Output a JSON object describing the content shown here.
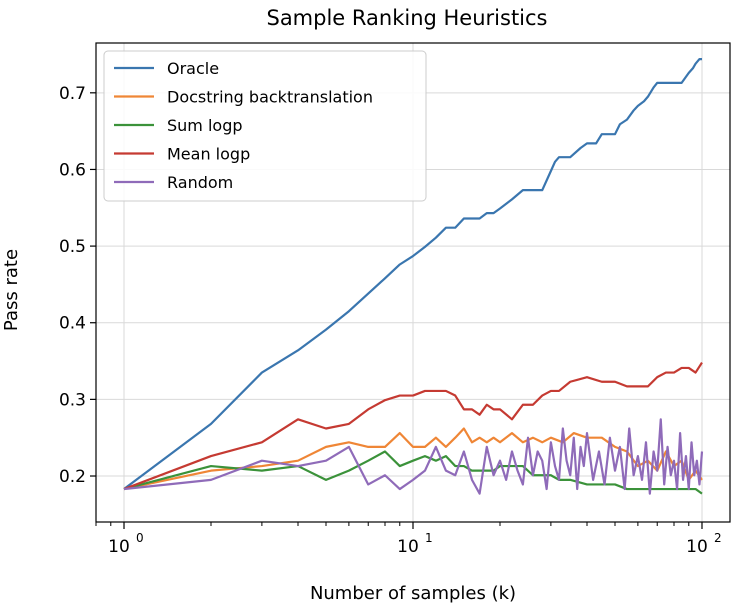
{
  "chart_data": {
    "type": "line",
    "title": "Sample Ranking Heuristics",
    "xlabel": "Number of samples (k)",
    "ylabel": "Pass rate",
    "xscale": "log",
    "xlim": [
      0.8,
      125
    ],
    "ylim": [
      0.14,
      0.765
    ],
    "xticks": [
      1,
      10,
      100
    ],
    "xtick_labels": [
      "10",
      "10",
      "10"
    ],
    "xtick_exponents": [
      "0",
      "1",
      "2"
    ],
    "yticks": [
      0.2,
      0.3,
      0.4,
      0.5,
      0.6,
      0.7
    ],
    "ytick_labels": [
      "0.2",
      "0.3",
      "0.4",
      "0.5",
      "0.6",
      "0.7"
    ],
    "grid": true,
    "legend_position": "top-left",
    "series": [
      {
        "name": "Oracle",
        "color": "#3a76af",
        "x": [
          1,
          2,
          3,
          4,
          5,
          6,
          7,
          8,
          9,
          10,
          11,
          12,
          13,
          14,
          15,
          16,
          17,
          18,
          19,
          20,
          22,
          24,
          26,
          28,
          30,
          31,
          32,
          35,
          38,
          40,
          43,
          45,
          48,
          50,
          52,
          55,
          58,
          60,
          63,
          65,
          68,
          70,
          72,
          75,
          80,
          85,
          90,
          93,
          95,
          98,
          100
        ],
        "values": [
          0.183,
          0.268,
          0.335,
          0.364,
          0.391,
          0.415,
          0.438,
          0.458,
          0.476,
          0.487,
          0.499,
          0.511,
          0.524,
          0.524,
          0.536,
          0.536,
          0.536,
          0.543,
          0.543,
          0.549,
          0.561,
          0.573,
          0.573,
          0.573,
          0.598,
          0.61,
          0.616,
          0.616,
          0.628,
          0.634,
          0.634,
          0.646,
          0.646,
          0.646,
          0.659,
          0.665,
          0.677,
          0.683,
          0.689,
          0.695,
          0.707,
          0.713,
          0.713,
          0.713,
          0.713,
          0.713,
          0.726,
          0.732,
          0.738,
          0.744,
          0.744
        ]
      },
      {
        "name": "Docstring backtranslation",
        "color": "#ef8636",
        "x": [
          1,
          2,
          3,
          4,
          5,
          6,
          7,
          8,
          9,
          10,
          11,
          12,
          13,
          14,
          15,
          16,
          17,
          18,
          19,
          20,
          22,
          24,
          26,
          28,
          30,
          33,
          36,
          40,
          45,
          50,
          55,
          60,
          65,
          70,
          75,
          80,
          85,
          90,
          95,
          100
        ],
        "values": [
          0.183,
          0.207,
          0.213,
          0.22,
          0.238,
          0.244,
          0.238,
          0.238,
          0.256,
          0.238,
          0.238,
          0.25,
          0.238,
          0.25,
          0.262,
          0.244,
          0.25,
          0.244,
          0.25,
          0.244,
          0.256,
          0.244,
          0.25,
          0.244,
          0.25,
          0.244,
          0.256,
          0.25,
          0.25,
          0.238,
          0.232,
          0.213,
          0.22,
          0.207,
          0.232,
          0.213,
          0.22,
          0.195,
          0.207,
          0.195
        ]
      },
      {
        "name": "Sum logp",
        "color": "#3b923a",
        "x": [
          1,
          2,
          3,
          4,
          5,
          6,
          7,
          8,
          9,
          10,
          11,
          12,
          13,
          14,
          15,
          16,
          17,
          18,
          19,
          20,
          22,
          24,
          26,
          28,
          30,
          32,
          35,
          40,
          45,
          50,
          55,
          60,
          65,
          70,
          75,
          80,
          85,
          90,
          95,
          100
        ],
        "values": [
          0.183,
          0.213,
          0.207,
          0.213,
          0.195,
          0.207,
          0.22,
          0.232,
          0.213,
          0.22,
          0.226,
          0.22,
          0.226,
          0.213,
          0.213,
          0.207,
          0.207,
          0.207,
          0.207,
          0.213,
          0.213,
          0.213,
          0.201,
          0.201,
          0.201,
          0.195,
          0.195,
          0.189,
          0.189,
          0.189,
          0.183,
          0.183,
          0.183,
          0.183,
          0.183,
          0.183,
          0.183,
          0.183,
          0.183,
          0.177
        ]
      },
      {
        "name": "Mean logp",
        "color": "#c53a32",
        "x": [
          1,
          2,
          3,
          4,
          5,
          6,
          7,
          8,
          9,
          10,
          11,
          12,
          13,
          14,
          15,
          16,
          17,
          18,
          19,
          20,
          22,
          24,
          26,
          28,
          30,
          32,
          35,
          40,
          45,
          50,
          55,
          60,
          65,
          70,
          75,
          80,
          85,
          90,
          95,
          100
        ],
        "values": [
          0.183,
          0.226,
          0.244,
          0.274,
          0.262,
          0.268,
          0.287,
          0.299,
          0.305,
          0.305,
          0.311,
          0.311,
          0.311,
          0.305,
          0.287,
          0.287,
          0.28,
          0.293,
          0.287,
          0.287,
          0.274,
          0.293,
          0.293,
          0.305,
          0.311,
          0.311,
          0.323,
          0.329,
          0.323,
          0.323,
          0.317,
          0.317,
          0.317,
          0.329,
          0.335,
          0.335,
          0.341,
          0.341,
          0.335,
          0.348
        ]
      },
      {
        "name": "Random",
        "color": "#8f6bb9",
        "x": [
          1,
          2,
          3,
          4,
          5,
          6,
          7,
          8,
          9,
          10,
          11,
          12,
          13,
          14,
          15,
          16,
          17,
          18,
          19,
          20,
          21,
          22,
          23,
          24,
          25,
          26,
          27,
          28,
          29,
          30,
          31,
          32,
          33,
          34,
          35,
          36,
          37,
          38,
          39,
          40,
          42,
          44,
          46,
          48,
          50,
          52,
          54,
          56,
          58,
          60,
          62,
          64,
          66,
          68,
          70,
          72,
          74,
          76,
          78,
          80,
          82,
          84,
          86,
          88,
          90,
          92,
          94,
          96,
          98,
          100
        ],
        "values": [
          0.183,
          0.195,
          0.22,
          0.213,
          0.22,
          0.238,
          0.189,
          0.201,
          0.183,
          0.195,
          0.207,
          0.238,
          0.207,
          0.201,
          0.232,
          0.195,
          0.177,
          0.238,
          0.201,
          0.22,
          0.195,
          0.232,
          0.207,
          0.189,
          0.25,
          0.201,
          0.232,
          0.22,
          0.183,
          0.244,
          0.213,
          0.195,
          0.262,
          0.22,
          0.201,
          0.25,
          0.183,
          0.238,
          0.213,
          0.256,
          0.195,
          0.232,
          0.189,
          0.25,
          0.207,
          0.238,
          0.183,
          0.262,
          0.201,
          0.226,
          0.195,
          0.244,
          0.177,
          0.232,
          0.207,
          0.274,
          0.189,
          0.238,
          0.201,
          0.22,
          0.183,
          0.256,
          0.195,
          0.226,
          0.183,
          0.244,
          0.201,
          0.22,
          0.189,
          0.232
        ]
      }
    ]
  }
}
